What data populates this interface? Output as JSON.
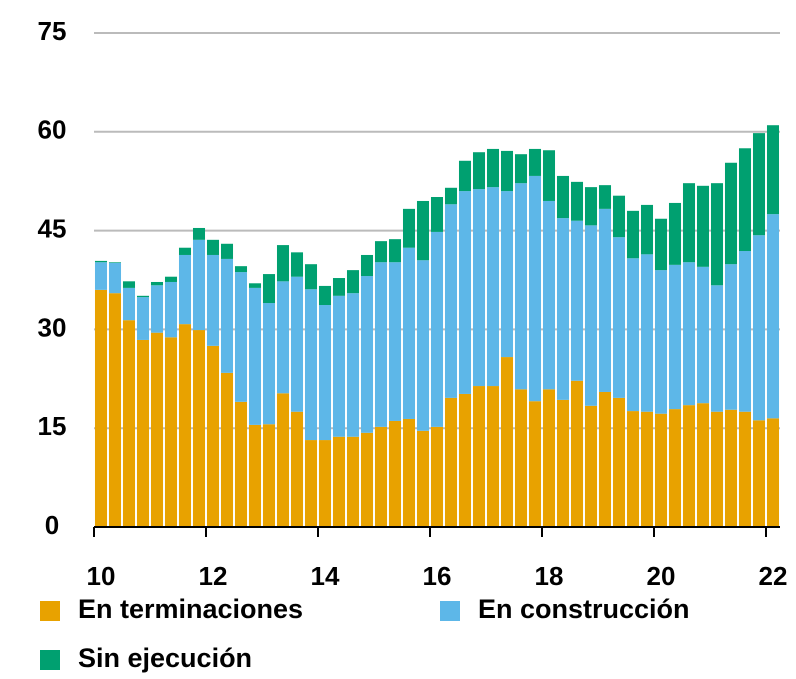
{
  "chart_data": {
    "type": "stacked-bar",
    "categories": [
      "10",
      null,
      null,
      null,
      null,
      null,
      null,
      null,
      "12",
      null,
      null,
      null,
      null,
      null,
      null,
      null,
      "14",
      null,
      null,
      null,
      null,
      null,
      null,
      null,
      "16",
      null,
      null,
      null,
      null,
      null,
      null,
      null,
      "18",
      null,
      null,
      null,
      null,
      null,
      null,
      null,
      "20",
      null,
      null,
      null,
      null,
      null,
      null,
      null,
      "22"
    ],
    "series": [
      {
        "name": "En terminaciones",
        "color": "#e8a200",
        "values": [
          36.0,
          35.5,
          31.4,
          28.4,
          29.5,
          28.8,
          30.8,
          29.9,
          27.5,
          23.4,
          19.0,
          15.5,
          15.6,
          20.3,
          17.5,
          13.2,
          13.2,
          13.7,
          13.7,
          14.3,
          15.2,
          16.1,
          16.4,
          14.6,
          15.2,
          19.6,
          20.2,
          21.4,
          21.4,
          25.8,
          20.9,
          19.1,
          20.9,
          19.3,
          22.2,
          18.4,
          20.5,
          19.6,
          17.6,
          17.5,
          17.2,
          17.9,
          18.5,
          18.8,
          17.5,
          17.8,
          17.5,
          16.2,
          16.5
        ]
      },
      {
        "name": "En construcción",
        "color": "#5db7e8",
        "values": [
          4.2,
          4.6,
          4.9,
          6.5,
          7.2,
          8.4,
          10.5,
          13.7,
          13.8,
          17.3,
          19.7,
          20.8,
          18.4,
          17.0,
          20.5,
          22.9,
          20.5,
          21.4,
          21.8,
          23.8,
          25.0,
          24.1,
          26.0,
          25.9,
          29.6,
          29.4,
          30.8,
          29.9,
          30.2,
          25.2,
          31.3,
          34.2,
          28.6,
          27.6,
          24.3,
          27.4,
          27.8,
          24.4,
          23.2,
          23.9,
          21.8,
          21.9,
          21.7,
          20.7,
          19.2,
          22.1,
          24.4,
          28.1,
          31.0
        ]
      },
      {
        "name": "Sin ejecución",
        "color": "#00a070",
        "values": [
          0.2,
          0.1,
          1.0,
          0.2,
          0.5,
          0.8,
          1.1,
          1.8,
          2.3,
          2.3,
          0.9,
          0.7,
          4.4,
          5.5,
          3.7,
          3.8,
          2.9,
          2.7,
          3.5,
          3.2,
          3.2,
          3.5,
          5.9,
          9.0,
          5.3,
          2.5,
          4.6,
          5.6,
          5.8,
          6.1,
          4.4,
          4.1,
          7.7,
          6.4,
          5.9,
          5.8,
          3.6,
          6.3,
          7.2,
          7.5,
          7.8,
          9.4,
          12.0,
          12.3,
          15.5,
          15.4,
          15.6,
          15.5,
          13.5
        ]
      }
    ],
    "ylim": [
      0,
      75
    ],
    "yticks": [
      0,
      15,
      30,
      45,
      60,
      75
    ],
    "grid": true
  }
}
